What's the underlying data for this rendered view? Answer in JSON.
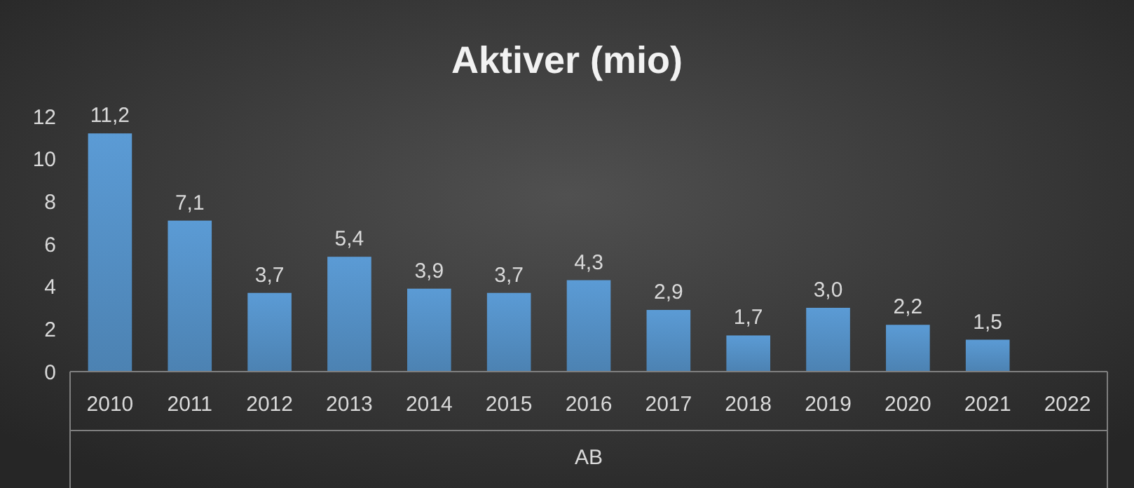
{
  "chart_data": {
    "type": "bar",
    "title": "Aktiver (mio)",
    "xlabel": "AB",
    "categories": [
      "2010",
      "2011",
      "2012",
      "2013",
      "2014",
      "2015",
      "2016",
      "2017",
      "2018",
      "2019",
      "2020",
      "2021",
      "2022"
    ],
    "values": [
      11.2,
      7.1,
      3.7,
      5.4,
      3.9,
      3.7,
      4.3,
      2.9,
      1.7,
      3.0,
      2.2,
      1.5,
      null
    ],
    "value_labels": [
      "11,2",
      "7,1",
      "3,7",
      "5,4",
      "3,9",
      "3,7",
      "4,3",
      "2,9",
      "1,7",
      "3,0",
      "2,2",
      "1,5",
      null
    ],
    "color": "#5b9bd5",
    "ylim": [
      0,
      12
    ],
    "yticks": [
      0,
      2,
      4,
      6,
      8,
      10,
      12
    ],
    "grid": false
  }
}
